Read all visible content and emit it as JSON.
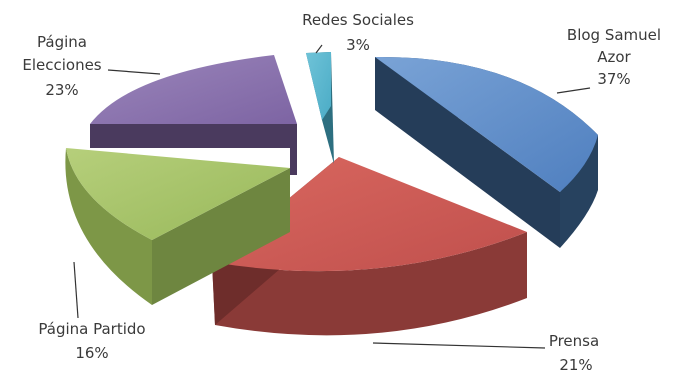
{
  "chart_data": {
    "type": "pie",
    "style": "3d-exploded",
    "title": "",
    "slices": [
      {
        "label": "Blog Samuel Azor",
        "value": 37,
        "percent_label": "37%",
        "color": "#4f81bd"
      },
      {
        "label": "Prensa",
        "value": 21,
        "percent_label": "21%",
        "color": "#c0504d"
      },
      {
        "label": "Página Partido",
        "value": 16,
        "percent_label": "16%",
        "color": "#9bbb59"
      },
      {
        "label": "Página Elecciones",
        "value": 23,
        "percent_label": "23%",
        "color": "#8064a2"
      },
      {
        "label": "Redes Sociales",
        "value": 3,
        "percent_label": "3%",
        "color": "#4bacc6"
      }
    ]
  }
}
